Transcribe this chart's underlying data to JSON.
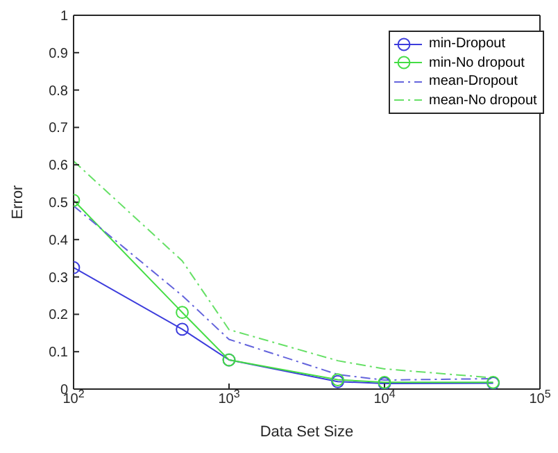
{
  "chart_data": {
    "type": "line",
    "xlabel": "Data Set Size",
    "ylabel": "Error",
    "log": "x",
    "x": [
      100,
      500,
      1000,
      5000,
      10000,
      50000
    ],
    "xlim": [
      100,
      100000
    ],
    "xticks": [
      {
        "value": 100,
        "label": "10$^{2}$"
      },
      {
        "value": 1000,
        "label": "10$^{3}$"
      },
      {
        "value": 10000,
        "label": "10$^{4}$"
      },
      {
        "value": 100000,
        "label": "10$^{5}$"
      }
    ],
    "ylim": [
      0,
      1
    ],
    "yticks": [
      0,
      0.1,
      0.2,
      0.3,
      0.4,
      0.5,
      0.6,
      0.7,
      0.8,
      0.9,
      1
    ],
    "grid": false,
    "legend": "top right",
    "series": [
      {
        "name": "min-Dropout",
        "color": "#3c3cdc",
        "marker": "circle",
        "line_style": "solid",
        "values": [
          0.325,
          0.16,
          0.078,
          0.02,
          0.015,
          0.016
        ]
      },
      {
        "name": "min-No dropout",
        "color": "#44dd44",
        "marker": "circle",
        "line_style": "solid",
        "values": [
          0.505,
          0.205,
          0.078,
          0.025,
          0.018,
          0.018
        ]
      },
      {
        "name": "mean-Dropout",
        "color": "#6464dc",
        "marker": "none",
        "line_style": "dashed",
        "values": [
          0.49,
          0.25,
          0.133,
          0.039,
          0.024,
          0.028
        ]
      },
      {
        "name": "mean-No dropout",
        "color": "#66e066",
        "marker": "none",
        "line_style": "dashed",
        "values": [
          0.61,
          0.343,
          0.159,
          0.076,
          0.054,
          0.03
        ]
      }
    ]
  }
}
